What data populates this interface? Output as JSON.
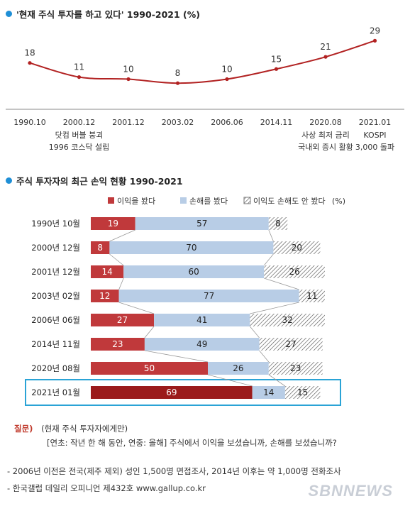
{
  "section1_title": "'현재 주식 투자를 하고 있다' 1990-2021 (%)",
  "section2_title": "주식 투자자의 최근 손익 현황 1990-2021",
  "chart_data": [
    {
      "type": "line",
      "x": [
        "1990.10",
        "2000.12",
        "2001.12",
        "2003.02",
        "2006.06",
        "2014.11",
        "2020.08",
        "2021.01"
      ],
      "values": [
        18,
        11,
        10,
        8,
        10,
        15,
        21,
        29
      ],
      "annotations": [
        {
          "x": "2000.12",
          "lines": [
            "닷컴 버블 붕괴",
            "1996 코스닥 설립"
          ]
        },
        {
          "x": "2020.08",
          "lines": [
            "사상 최저 금리",
            "국내외 증시 활황"
          ]
        },
        {
          "x": "2021.01",
          "lines": [
            "KOSPI",
            "3,000 돌파"
          ]
        }
      ],
      "color": "#b22222"
    },
    {
      "type": "bar",
      "stacked": true,
      "orientation": "horizontal",
      "legend_suffix": "(%)",
      "categories": [
        "1990년 10월",
        "2000년 12월",
        "2001년 12월",
        "2003년 02월",
        "2006년 06월",
        "2014년 11월",
        "2020년 08월",
        "2021년 01월"
      ],
      "series": [
        {
          "name": "이익을 봤다",
          "values": [
            19,
            8,
            14,
            12,
            27,
            23,
            50,
            69
          ],
          "color": "#c0393b"
        },
        {
          "name": "손해를 봤다",
          "values": [
            57,
            70,
            60,
            77,
            41,
            49,
            26,
            14
          ],
          "color": "#b8cde6"
        },
        {
          "name": "이익도 손해도 안 봤다",
          "values": [
            8,
            20,
            26,
            11,
            32,
            27,
            23,
            15
          ],
          "color": "hatch"
        }
      ],
      "highlight_category": "2021년 01월",
      "highlight_color": "#9b1b1b",
      "highlight_border": "#2aa3d6"
    }
  ],
  "question_label": "질문)",
  "question_scope": "(현재 주식 투자자에게만)",
  "question_text": "[연초: 작년 한 해 동안, 연중: 올해] 주식에서 이익을 보셨습니까, 손해를 보셨습니까?",
  "note1": "- 2006년 이전은 전국(제주 제외) 성인 1,500명 면접조사, 2014년 이후는 약 1,000명 전화조사",
  "note2": "- 한국갤럽 데일리 오피니언 제432호 www.gallup.co.kr",
  "watermark": "SBNNEWS"
}
